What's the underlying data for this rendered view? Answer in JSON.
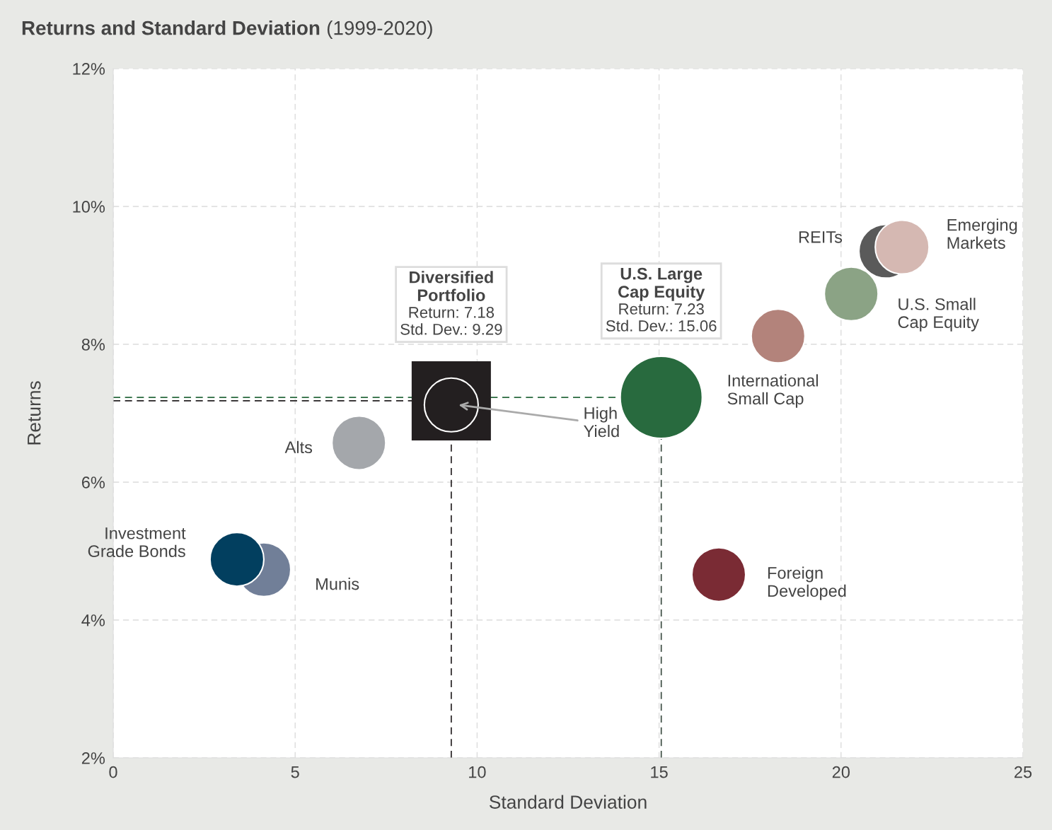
{
  "chart_data": {
    "type": "bubble",
    "title": "Returns and Standard Deviation",
    "subtitle": "(1999-2020)",
    "xlabel": "Standard Deviation",
    "ylabel": "Returns",
    "xlim": [
      0,
      25
    ],
    "xticks": [
      0,
      5,
      10,
      15,
      20,
      25
    ],
    "ylim": [
      2,
      12
    ],
    "yticks": [
      {
        "value": 2,
        "label": "2%"
      },
      {
        "value": 4,
        "label": "4%"
      },
      {
        "value": 6,
        "label": "6%"
      },
      {
        "value": 8,
        "label": "8%"
      },
      {
        "value": 10,
        "label": "10%"
      },
      {
        "value": 12,
        "label": "12%"
      }
    ],
    "grid": true,
    "legend": false,
    "marker": "circle",
    "series": [
      {
        "name": "Munis",
        "color": "#717f98",
        "x": [
          4.14
        ],
        "values": [
          4.73
        ],
        "sizes": [
          0.43
        ]
      },
      {
        "name": "Investment\nGrade Bonds",
        "color": "#023f5f",
        "x": [
          3.4
        ],
        "values": [
          4.88
        ],
        "sizes": [
          0.43
        ]
      },
      {
        "name": "Alts",
        "color": "#a4a7ab",
        "x": [
          6.75
        ],
        "values": [
          6.57
        ],
        "sizes": [
          0.43
        ]
      },
      {
        "name": "High\nYield",
        "color": "#231f20",
        "x": [
          9.29
        ],
        "values": [
          7.12
        ],
        "sizes": [
          0.43
        ]
      },
      {
        "color": "#286a3e",
        "x": [
          15.06
        ],
        "values": [
          7.23
        ],
        "sizes": [
          1
        ]
      },
      {
        "name": "Foreign\nDeveloped",
        "color": "#7a2b34",
        "x": [
          16.64
        ],
        "values": [
          4.66
        ],
        "sizes": [
          0.43
        ]
      },
      {
        "name": "International\nSmall Cap",
        "color": "#b3837b",
        "x": [
          18.27
        ],
        "values": [
          8.12
        ],
        "sizes": [
          0.43
        ]
      },
      {
        "name": "U.S. Small\nCap Equity",
        "color": "#8ba385",
        "x": [
          20.28
        ],
        "values": [
          8.73
        ],
        "sizes": [
          0.43
        ]
      },
      {
        "name": "REITs",
        "color": "#5a5a5a",
        "x": [
          21.23
        ],
        "values": [
          9.35
        ],
        "sizes": [
          0.43
        ]
      },
      {
        "name": "Emerging\nMarkets",
        "color": "#d5b8b2",
        "x": [
          21.68
        ],
        "values": [
          9.41
        ],
        "sizes": [
          0.43
        ]
      }
    ],
    "annotations": [
      "Diversified\nPortfolio",
      "Return: 7.18\nStd. Dev.: 9.29",
      "U.S. Large\nCap Equity",
      "Return: 7.23\nStd. Dev.: 15.06"
    ],
    "ref_lines": [
      {
        "axis": "y",
        "value": 7.18,
        "color": "#231f20",
        "line_style": "dashed"
      },
      {
        "axis": "y",
        "value": 7.23,
        "color": "#286a3e",
        "line_style": "dashed"
      },
      {
        "axis": "x",
        "value": 9.29,
        "color": "#231f20",
        "line_style": "dashed"
      },
      {
        "axis": "x",
        "value": 15.06,
        "color": "#3a4a40",
        "line_style": "dashed"
      }
    ]
  }
}
